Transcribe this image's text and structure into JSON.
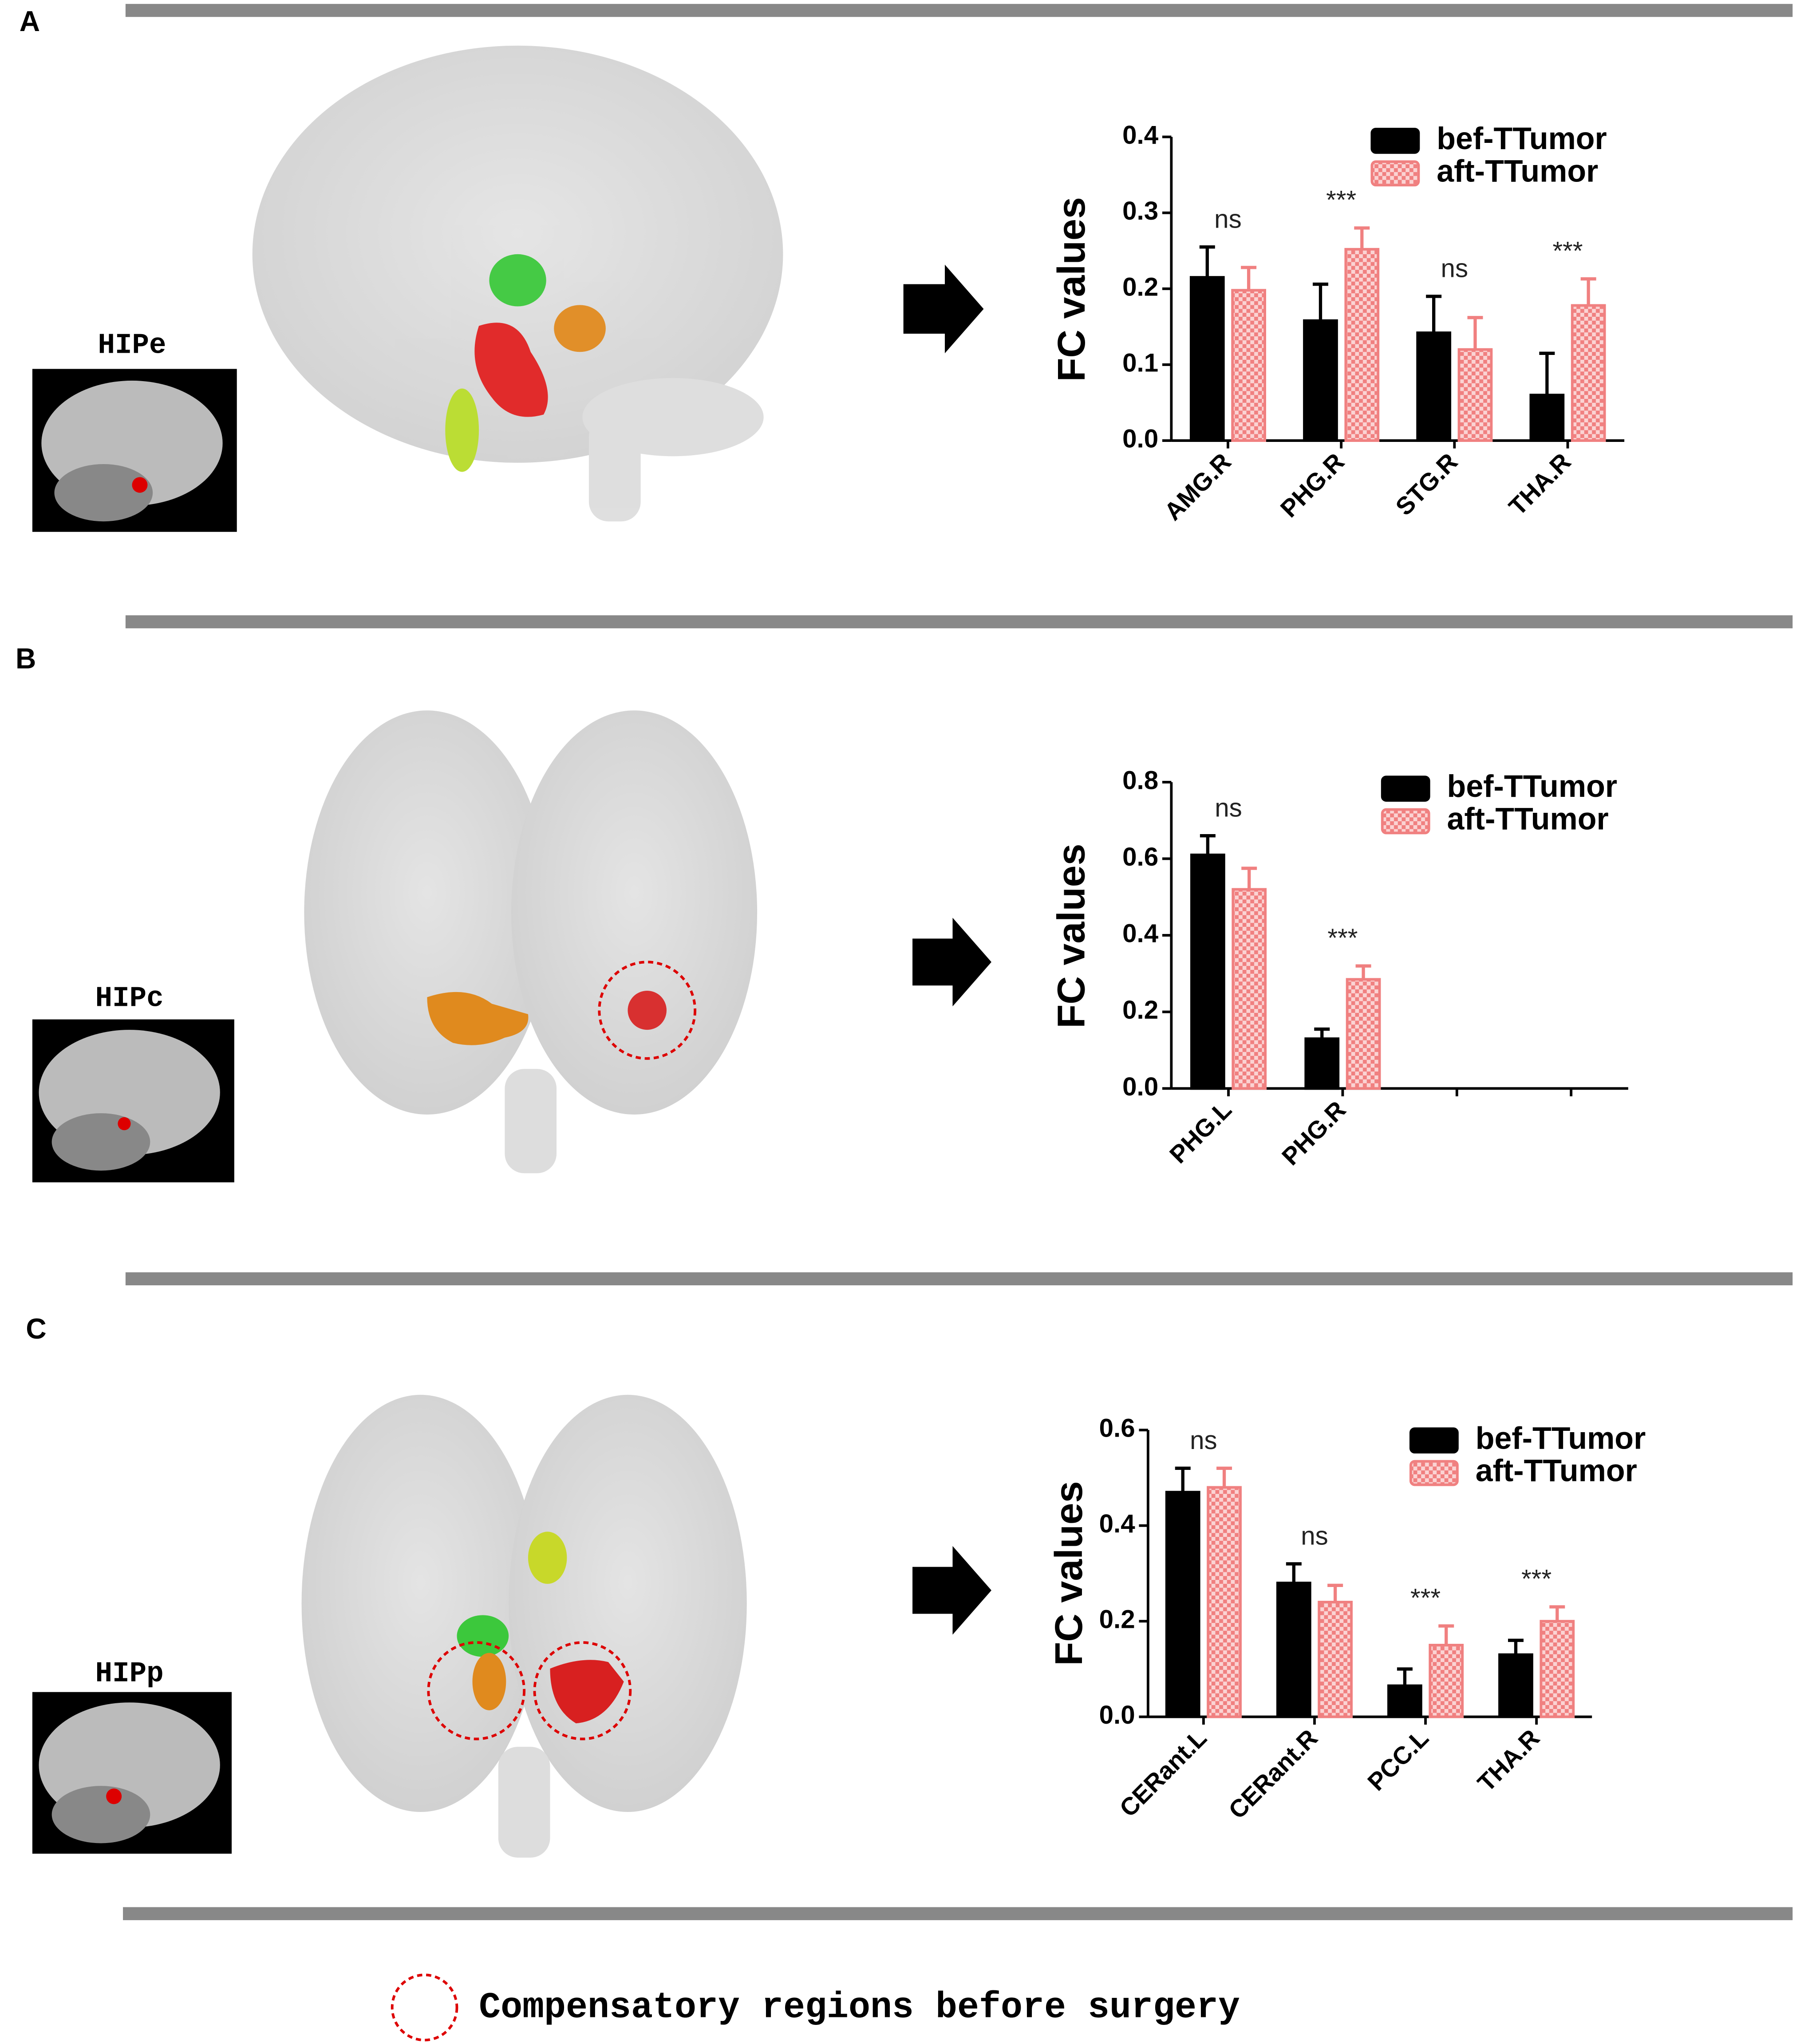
{
  "panels": [
    {
      "label": "A",
      "region": "HIPe"
    },
    {
      "label": "B",
      "region": "HIPc"
    },
    {
      "label": "C",
      "region": "HIPp"
    }
  ],
  "note": "Compensatory regions before surgery",
  "chart_data": [
    {
      "type": "bar",
      "ylabel": "FC values",
      "categories": [
        "AMG.R",
        "PHG.R",
        "STG.R",
        "THA.R"
      ],
      "series": [
        {
          "name": "bef-TTumor",
          "color": "#000000",
          "values": [
            0.215,
            0.158,
            0.142,
            0.06
          ],
          "errors": [
            0.04,
            0.048,
            0.048,
            0.055
          ]
        },
        {
          "name": "aft-TTumor",
          "color": "#f08080",
          "hatch": true,
          "values": [
            0.198,
            0.252,
            0.12,
            0.178
          ],
          "errors": [
            0.03,
            0.028,
            0.042,
            0.035
          ]
        }
      ],
      "annotations": [
        "ns",
        "***",
        "ns",
        "***"
      ],
      "ylim": [
        0,
        0.4
      ],
      "yticks": [
        {
          "value": 0,
          "label": "0.0"
        },
        0.1,
        0.2,
        0.3,
        0.4
      ]
    },
    {
      "type": "bar",
      "ylabel": "FC values",
      "categories": [
        "PHG.L",
        "PHG.R",
        null,
        null
      ],
      "series": [
        {
          "name": "bef-TTumor",
          "color": "#000000",
          "values": [
            0.61,
            0.13,
            null,
            null
          ],
          "errors": [
            0.05,
            0.025,
            null,
            null
          ]
        },
        {
          "name": "aft-TTumor",
          "color": "#f08080",
          "hatch": true,
          "values": [
            0.52,
            0.285,
            null,
            null
          ],
          "errors": [
            0.055,
            0.035,
            null,
            null
          ]
        }
      ],
      "annotations": [
        "ns",
        "***",
        null,
        null
      ],
      "ylim": [
        0,
        0.8
      ],
      "yticks": [
        {
          "value": 0,
          "label": "0.0"
        },
        0.2,
        0.4,
        0.6,
        0.8
      ]
    },
    {
      "type": "bar",
      "ylabel": "FC values",
      "categories": [
        "CERant.L",
        "CERant.R",
        "PCC.L",
        "THA.R"
      ],
      "series": [
        {
          "name": "bef-TTumor",
          "color": "#000000",
          "values": [
            0.47,
            0.28,
            0.065,
            0.13
          ],
          "errors": [
            0.05,
            0.04,
            0.035,
            0.03
          ]
        },
        {
          "name": "aft-TTumor",
          "color": "#f08080",
          "hatch": true,
          "values": [
            0.48,
            0.24,
            0.15,
            0.2
          ],
          "errors": [
            0.04,
            0.035,
            0.04,
            0.03
          ]
        }
      ],
      "annotations": [
        "ns",
        "ns",
        "***",
        "***"
      ],
      "ylim": [
        0,
        0.6
      ],
      "yticks": [
        {
          "value": 0,
          "label": "0.0"
        },
        0.2,
        0.4,
        0.6
      ]
    }
  ]
}
